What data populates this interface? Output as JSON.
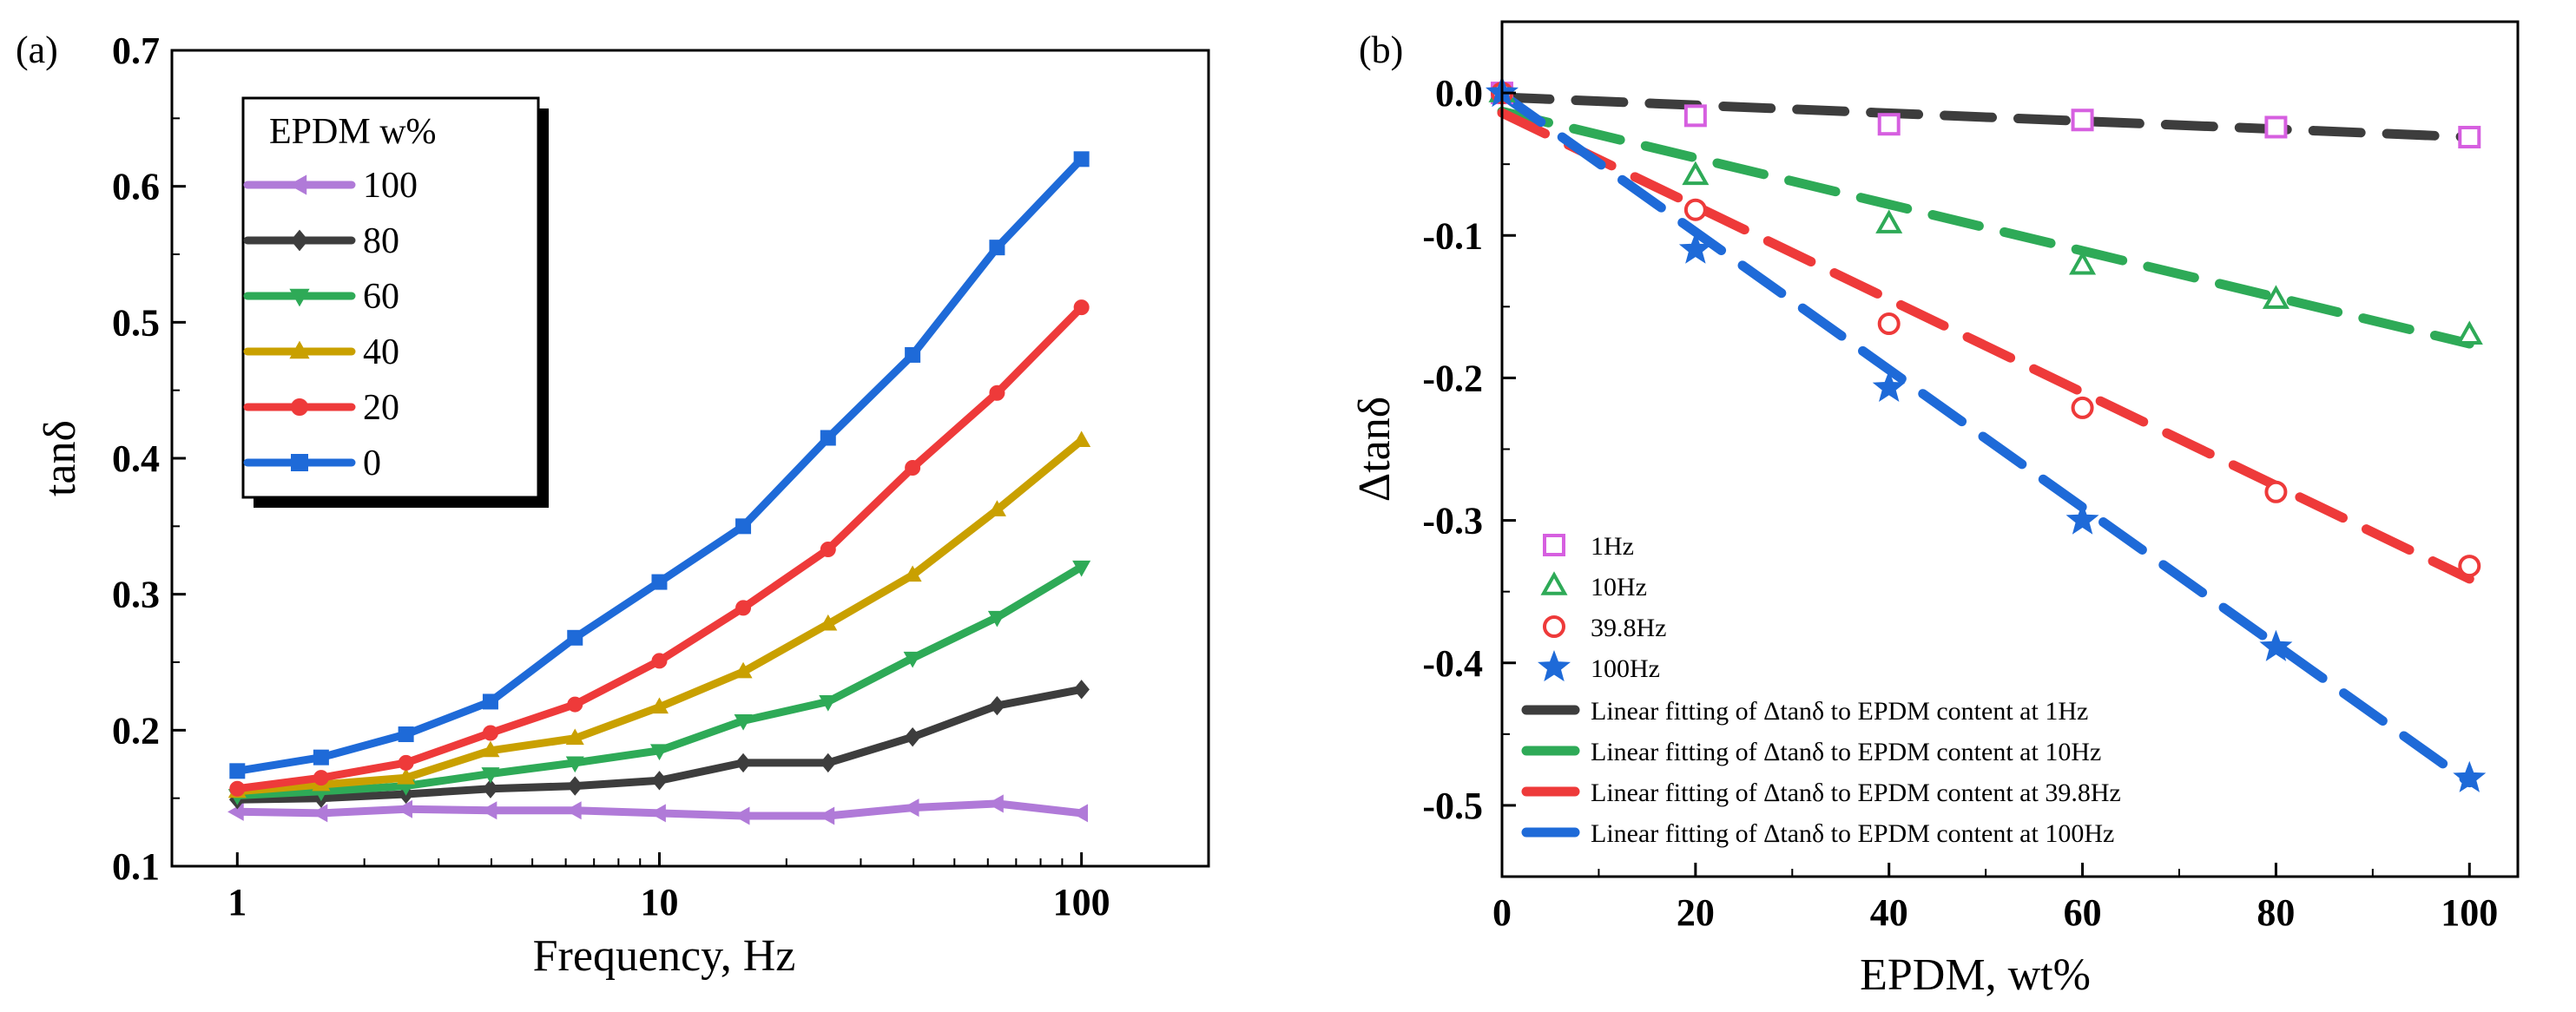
{
  "chart_data": [
    {
      "panel_label": "(a)",
      "type": "line",
      "xscale": "log",
      "xlabel": "Frequency, Hz",
      "ylabel": "tanδ",
      "xlim": [
        0.7,
        200
      ],
      "ylim": [
        0.1,
        0.7
      ],
      "xticks": [
        {
          "value": 1,
          "label": "1"
        },
        {
          "value": 10,
          "label": "10"
        },
        {
          "value": 100,
          "label": "100"
        }
      ],
      "yticks": [
        {
          "value": 0.1,
          "label": "0.1"
        },
        {
          "value": 0.2,
          "label": "0.2"
        },
        {
          "value": 0.3,
          "label": "0.3"
        },
        {
          "value": 0.4,
          "label": "0.4"
        },
        {
          "value": 0.5,
          "label": "0.5"
        },
        {
          "value": 0.6,
          "label": "0.6"
        },
        {
          "value": 0.7,
          "label": "0.7"
        }
      ],
      "legend_title": "EPDM w%",
      "legend_position": "top-left",
      "x": [
        1,
        1.58,
        2.51,
        3.98,
        6.31,
        10,
        15.8,
        25.1,
        39.8,
        63.1,
        100
      ],
      "series": [
        {
          "name": "100",
          "color": "#b07ad8",
          "marker": "triangle-left",
          "values": [
            0.14,
            0.139,
            0.142,
            0.141,
            0.141,
            0.139,
            0.137,
            0.137,
            0.143,
            0.146,
            0.139
          ]
        },
        {
          "name": "80",
          "color": "#3d3d3d",
          "marker": "diamond",
          "values": [
            0.149,
            0.15,
            0.153,
            0.157,
            0.159,
            0.163,
            0.176,
            0.176,
            0.195,
            0.218,
            0.23
          ]
        },
        {
          "name": "60",
          "color": "#2eaa57",
          "marker": "triangle-down",
          "values": [
            0.152,
            0.155,
            0.159,
            0.168,
            0.176,
            0.185,
            0.207,
            0.221,
            0.253,
            0.283,
            0.32
          ]
        },
        {
          "name": "40",
          "color": "#c9a000",
          "marker": "triangle-up",
          "values": [
            0.155,
            0.16,
            0.165,
            0.185,
            0.194,
            0.217,
            0.243,
            0.278,
            0.314,
            0.362,
            0.413
          ]
        },
        {
          "name": "20",
          "color": "#ee3a3a",
          "marker": "circle",
          "values": [
            0.157,
            0.165,
            0.176,
            0.198,
            0.219,
            0.251,
            0.29,
            0.333,
            0.393,
            0.448,
            0.511
          ]
        },
        {
          "name": "0",
          "color": "#1e6ad8",
          "marker": "square",
          "values": [
            0.17,
            0.18,
            0.197,
            0.221,
            0.268,
            0.309,
            0.35,
            0.415,
            0.476,
            0.555,
            0.62
          ]
        }
      ]
    },
    {
      "panel_label": "(b)",
      "type": "scatter",
      "xlabel": "EPDM, wt%",
      "ylabel": "Δtanδ",
      "xlim": [
        0,
        105
      ],
      "ylim": [
        -0.55,
        0.05
      ],
      "xticks": [
        {
          "value": 0,
          "label": "0"
        },
        {
          "value": 20,
          "label": "20"
        },
        {
          "value": 40,
          "label": "40"
        },
        {
          "value": 60,
          "label": "60"
        },
        {
          "value": 80,
          "label": "80"
        },
        {
          "value": 100,
          "label": "100"
        }
      ],
      "yticks": [
        {
          "value": 0.0,
          "label": "0.0"
        },
        {
          "value": -0.1,
          "label": "-0.1"
        },
        {
          "value": -0.2,
          "label": "-0.2"
        },
        {
          "value": -0.3,
          "label": "-0.3"
        },
        {
          "value": -0.4,
          "label": "-0.4"
        },
        {
          "value": -0.5,
          "label": "-0.5"
        }
      ],
      "legend_position": "bottom-left",
      "x": [
        0,
        20,
        40,
        60,
        80,
        100
      ],
      "series": [
        {
          "name": "1Hz",
          "color": "#d65fe0",
          "marker": "square",
          "values": [
            0,
            -0.016,
            -0.022,
            -0.019,
            -0.024,
            -0.031
          ]
        },
        {
          "name": "10Hz",
          "color": "#2eaa57",
          "marker": "triangle-up",
          "values": [
            0,
            -0.058,
            -0.092,
            -0.121,
            -0.145,
            -0.17
          ]
        },
        {
          "name": "39.8Hz",
          "color": "#ee3a3a",
          "marker": "circle",
          "values": [
            0,
            -0.082,
            -0.162,
            -0.221,
            -0.28,
            -0.332
          ]
        },
        {
          "name": "100Hz",
          "color": "#1e6ad8",
          "marker": "star",
          "values": [
            0,
            -0.11,
            -0.207,
            -0.3,
            -0.389,
            -0.481
          ]
        }
      ],
      "fits": [
        {
          "name": "Linear fitting of Δtanδ to EPDM content at 1Hz",
          "color": "#3d3d3d",
          "slope": -0.00028,
          "intercept": -0.003
        },
        {
          "name": "Linear fitting of Δtanδ to EPDM content at 10Hz",
          "color": "#2eaa57",
          "slope": -0.00163,
          "intercept": -0.013
        },
        {
          "name": "Linear fitting of Δtanδ to EPDM content at 39.8Hz",
          "color": "#ee3a3a",
          "slope": -0.00327,
          "intercept": -0.014
        },
        {
          "name": "Linear fitting of Δtanδ to EPDM content at 100Hz",
          "color": "#1e6ad8",
          "slope": -0.00483,
          "intercept": -0.001
        }
      ]
    }
  ]
}
